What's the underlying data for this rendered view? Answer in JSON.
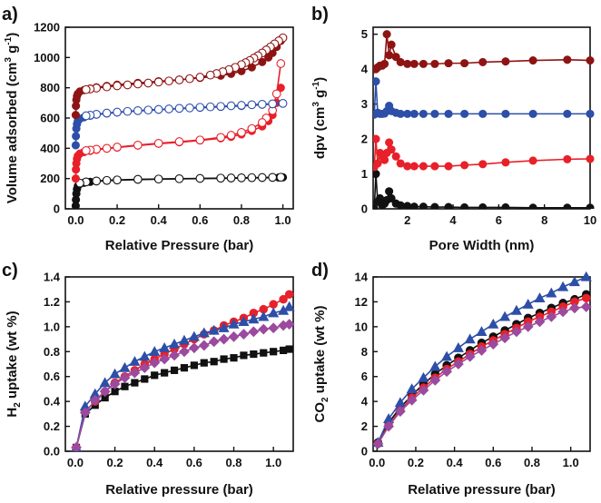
{
  "colors": {
    "black": "#111111",
    "red": "#e8202a",
    "blue": "#2d4fa8",
    "darkred": "#8e1414",
    "magenta": "#9b4a9e"
  },
  "chart_data": [
    {
      "panel": "a)",
      "type": "scatter",
      "xlabel": "Relative Pressure (bar)",
      "ylabel_main": "Volume adsorbed (cm",
      "ylabel_sup1": "3",
      "ylabel_mid": " g",
      "ylabel_sup2": "-1",
      "ylabel_end": ")",
      "xlim": [
        -0.05,
        1.05
      ],
      "ylim": [
        0,
        1200
      ],
      "xticks": [
        "0.0",
        "0.2",
        "0.4",
        "0.6",
        "0.8",
        "1.0"
      ],
      "yticks": [
        "0",
        "200",
        "400",
        "600",
        "800",
        "1000",
        "1200"
      ],
      "xtick_values": [
        0,
        0.2,
        0.4,
        0.6,
        0.8,
        1.0
      ],
      "ytick_values": [
        0,
        200,
        400,
        600,
        800,
        1000,
        1200
      ],
      "series": [
        {
          "color": "black",
          "marker": "circle",
          "adsorption": {
            "x": [
              0.0,
              0.001,
              0.003,
              0.006,
              0.01,
              0.02,
              0.04,
              0.07,
              0.1,
              0.15,
              0.2,
              0.3,
              0.4,
              0.5,
              0.6,
              0.7,
              0.75,
              0.8,
              0.85,
              0.9,
              0.95,
              0.98,
              1.0
            ],
            "y": [
              20,
              60,
              100,
              130,
              150,
              165,
              172,
              178,
              182,
              186,
              189,
              193,
              196,
              198,
              200,
              201,
              202,
              203,
              204,
              205,
              206,
              207,
              208
            ]
          },
          "desorption": {
            "x": [
              0.99,
              0.95,
              0.9,
              0.85,
              0.8,
              0.75,
              0.7,
              0.6,
              0.5,
              0.4,
              0.3,
              0.2,
              0.15,
              0.1,
              0.05,
              0.02
            ],
            "y": [
              209,
              208,
              207,
              206,
              205,
              204,
              203,
              201,
              199,
              197,
              195,
              191,
              188,
              184,
              178,
              170
            ]
          }
        },
        {
          "color": "red",
          "marker": "circle",
          "adsorption": {
            "x": [
              0.0,
              0.001,
              0.003,
              0.006,
              0.01,
              0.02,
              0.04,
              0.07,
              0.1,
              0.15,
              0.2,
              0.3,
              0.4,
              0.5,
              0.6,
              0.7,
              0.75,
              0.8,
              0.85,
              0.9,
              0.93,
              0.95,
              0.97,
              0.99
            ],
            "y": [
              200,
              260,
              300,
              330,
              350,
              365,
              375,
              383,
              390,
              398,
              405,
              418,
              430,
              440,
              452,
              466,
              476,
              492,
              515,
              545,
              580,
              620,
              700,
              800
            ]
          },
          "desorption": {
            "x": [
              0.99,
              0.97,
              0.95,
              0.92,
              0.9,
              0.85,
              0.8,
              0.75,
              0.7,
              0.6,
              0.5,
              0.4,
              0.3,
              0.2,
              0.15,
              0.1,
              0.07,
              0.05
            ],
            "y": [
              960,
              760,
              650,
              600,
              570,
              530,
              505,
              486,
              472,
              455,
              444,
              433,
              421,
              408,
              400,
              394,
              388,
              385
            ]
          }
        },
        {
          "color": "blue",
          "marker": "circle",
          "adsorption": {
            "x": [
              0.0,
              0.001,
              0.003,
              0.006,
              0.01,
              0.02,
              0.04,
              0.07,
              0.1,
              0.15,
              0.2,
              0.3,
              0.4,
              0.5,
              0.6,
              0.7,
              0.8,
              0.9,
              0.95,
              1.0
            ],
            "y": [
              420,
              480,
              530,
              560,
              580,
              595,
              605,
              615,
              622,
              630,
              637,
              647,
              655,
              662,
              668,
              674,
              680,
              688,
              692,
              695
            ]
          },
          "desorption": {
            "x": [
              1.0,
              0.95,
              0.9,
              0.85,
              0.8,
              0.75,
              0.7,
              0.65,
              0.6,
              0.55,
              0.5,
              0.45,
              0.4,
              0.35,
              0.3,
              0.25,
              0.2,
              0.15,
              0.1,
              0.07,
              0.05
            ],
            "y": [
              697,
              694,
              691,
              688,
              684,
              681,
              677,
              674,
              671,
              667,
              664,
              660,
              657,
              653,
              649,
              644,
              639,
              633,
              625,
              619,
              615
            ]
          }
        },
        {
          "color": "darkred",
          "marker": "circle",
          "adsorption": {
            "x": [
              0.0,
              0.001,
              0.003,
              0.006,
              0.01,
              0.02,
              0.04,
              0.07,
              0.1,
              0.15,
              0.2,
              0.3,
              0.4,
              0.5,
              0.6,
              0.7,
              0.75,
              0.8,
              0.85,
              0.9,
              0.93,
              0.95,
              0.97,
              0.99
            ],
            "y": [
              620,
              680,
              720,
              745,
              760,
              775,
              785,
              795,
              803,
              812,
              820,
              832,
              843,
              853,
              865,
              880,
              892,
              910,
              935,
              970,
              1000,
              1030,
              1070,
              1110
            ]
          },
          "desorption": {
            "x": [
              1.0,
              0.98,
              0.96,
              0.94,
              0.92,
              0.9,
              0.88,
              0.86,
              0.84,
              0.82,
              0.8,
              0.77,
              0.74,
              0.71,
              0.68,
              0.65,
              0.6,
              0.55,
              0.5,
              0.45,
              0.4,
              0.35,
              0.3,
              0.25,
              0.2,
              0.15,
              0.1,
              0.07,
              0.05
            ],
            "y": [
              1130,
              1110,
              1090,
              1070,
              1050,
              1030,
              1012,
              996,
              980,
              966,
              953,
              935,
              920,
              906,
              894,
              884,
              870,
              860,
              852,
              845,
              838,
              831,
              825,
              819,
              813,
              806,
              798,
              792,
              788
            ]
          }
        }
      ]
    },
    {
      "panel": "b)",
      "type": "line",
      "xlabel": "Pore Width (nm)",
      "ylabel_main": "dpv (cm",
      "ylabel_sup1": "3",
      "ylabel_mid": " g",
      "ylabel_sup2": "-1",
      "ylabel_end": ")",
      "xlim": [
        0.5,
        10
      ],
      "ylim": [
        0,
        5.2
      ],
      "xticks": [
        "2",
        "4",
        "6",
        "8",
        "10"
      ],
      "yticks": [
        "0",
        "1",
        "2",
        "3",
        "4",
        "5"
      ],
      "xtick_values": [
        2,
        4,
        6,
        8,
        10
      ],
      "ytick_values": [
        0,
        1,
        2,
        3,
        4,
        5
      ],
      "series": [
        {
          "color": "black",
          "marker": "circle",
          "x": [
            0.55,
            0.62,
            0.7,
            0.8,
            0.9,
            1.0,
            1.1,
            1.2,
            1.3,
            1.5,
            1.7,
            2.0,
            2.3,
            2.7,
            3.2,
            3.8,
            4.5,
            5.3,
            6.3,
            7.5,
            9.0,
            10.0
          ],
          "y": [
            0.0,
            1.0,
            0.2,
            0.3,
            0.1,
            0.15,
            0.25,
            0.5,
            0.3,
            0.15,
            0.1,
            0.08,
            0.06,
            0.06,
            0.05,
            0.05,
            0.04,
            0.04,
            0.04,
            0.03,
            0.03,
            0.03
          ]
        },
        {
          "color": "red",
          "marker": "circle",
          "x": [
            0.55,
            0.62,
            0.7,
            0.8,
            0.9,
            1.0,
            1.1,
            1.2,
            1.3,
            1.5,
            1.7,
            2.0,
            2.3,
            2.7,
            3.2,
            3.8,
            4.5,
            5.3,
            6.3,
            7.5,
            9.0,
            10.0
          ],
          "y": [
            1.2,
            2.0,
            1.3,
            1.6,
            1.5,
            1.4,
            1.6,
            1.9,
            1.7,
            1.5,
            1.3,
            1.22,
            1.22,
            1.22,
            1.22,
            1.22,
            1.25,
            1.28,
            1.33,
            1.38,
            1.42,
            1.43
          ]
        },
        {
          "color": "blue",
          "marker": "circle",
          "x": [
            0.55,
            0.62,
            0.7,
            0.8,
            0.9,
            1.0,
            1.1,
            1.2,
            1.3,
            1.5,
            1.7,
            2.0,
            2.3,
            2.7,
            3.2,
            3.8,
            4.5,
            5.3,
            6.3,
            7.5,
            9.0,
            10.0
          ],
          "y": [
            2.7,
            3.65,
            2.75,
            2.72,
            2.72,
            2.73,
            2.8,
            2.95,
            2.8,
            2.75,
            2.72,
            2.72,
            2.72,
            2.72,
            2.72,
            2.72,
            2.72,
            2.72,
            2.72,
            2.72,
            2.72,
            2.72
          ]
        },
        {
          "color": "darkred",
          "marker": "circle",
          "x": [
            0.55,
            0.62,
            0.7,
            0.8,
            0.9,
            1.0,
            1.1,
            1.2,
            1.3,
            1.5,
            1.7,
            2.0,
            2.3,
            2.7,
            3.2,
            3.8,
            4.5,
            5.3,
            6.3,
            7.5,
            9.0,
            10.0
          ],
          "y": [
            4.0,
            4.0,
            4.05,
            4.1,
            4.1,
            4.15,
            5.0,
            4.4,
            4.7,
            4.35,
            4.2,
            4.15,
            4.15,
            4.15,
            4.15,
            4.17,
            4.17,
            4.2,
            4.22,
            4.25,
            4.27,
            4.25
          ]
        }
      ]
    },
    {
      "panel": "c)",
      "type": "line",
      "xlabel": "Relative pressure (bar)",
      "ylabel_main": "H",
      "ylabel_sub": "2",
      "ylabel_end": " uptake (wt %)",
      "xlim": [
        -0.05,
        1.1
      ],
      "ylim": [
        0,
        1.4
      ],
      "xticks": [
        "0.0",
        "0.2",
        "0.4",
        "0.6",
        "0.8",
        "1.0"
      ],
      "yticks": [
        "0.0",
        "0.2",
        "0.4",
        "0.6",
        "0.8",
        "1.0",
        "1.2",
        "1.4"
      ],
      "xtick_values": [
        0,
        0.2,
        0.4,
        0.6,
        0.8,
        1.0
      ],
      "ytick_values": [
        0,
        0.2,
        0.4,
        0.6,
        0.8,
        1.0,
        1.2,
        1.4
      ],
      "x": [
        0.005,
        0.05,
        0.1,
        0.15,
        0.2,
        0.25,
        0.3,
        0.35,
        0.4,
        0.45,
        0.5,
        0.55,
        0.6,
        0.65,
        0.7,
        0.75,
        0.8,
        0.85,
        0.9,
        0.95,
        1.0,
        1.05,
        1.08
      ],
      "series": [
        {
          "color": "black",
          "marker": "square",
          "y": [
            0.03,
            0.3,
            0.37,
            0.43,
            0.48,
            0.52,
            0.55,
            0.58,
            0.61,
            0.63,
            0.65,
            0.67,
            0.69,
            0.71,
            0.72,
            0.74,
            0.75,
            0.77,
            0.78,
            0.79,
            0.8,
            0.81,
            0.82
          ]
        },
        {
          "color": "red",
          "marker": "circle",
          "y": [
            0.03,
            0.32,
            0.4,
            0.48,
            0.55,
            0.6,
            0.65,
            0.7,
            0.74,
            0.78,
            0.82,
            0.86,
            0.9,
            0.94,
            0.97,
            1.01,
            1.04,
            1.07,
            1.11,
            1.14,
            1.18,
            1.22,
            1.26
          ]
        },
        {
          "color": "blue",
          "marker": "triangle",
          "y": [
            0.03,
            0.36,
            0.46,
            0.55,
            0.62,
            0.67,
            0.72,
            0.76,
            0.8,
            0.83,
            0.86,
            0.89,
            0.92,
            0.95,
            0.97,
            0.99,
            1.02,
            1.04,
            1.06,
            1.08,
            1.11,
            1.13,
            1.16
          ]
        },
        {
          "color": "magenta",
          "marker": "diamond",
          "y": [
            0.03,
            0.31,
            0.41,
            0.48,
            0.54,
            0.59,
            0.63,
            0.67,
            0.71,
            0.74,
            0.77,
            0.8,
            0.83,
            0.85,
            0.88,
            0.9,
            0.92,
            0.94,
            0.96,
            0.98,
            0.99,
            1.01,
            1.02
          ]
        }
      ]
    },
    {
      "panel": "d)",
      "type": "line",
      "xlabel": "Relative pressure (bar)",
      "ylabel_main": "CO",
      "ylabel_sub": "2",
      "ylabel_end": " uptake (wt %)",
      "xlim": [
        -0.02,
        1.1
      ],
      "ylim": [
        0,
        14
      ],
      "xticks": [
        "0.0",
        "0.2",
        "0.4",
        "0.6",
        "0.8",
        "1.0"
      ],
      "yticks": [
        "0",
        "2",
        "4",
        "6",
        "8",
        "10",
        "12",
        "14"
      ],
      "xtick_values": [
        0,
        0.2,
        0.4,
        0.6,
        0.8,
        1.0
      ],
      "ytick_values": [
        0,
        2,
        4,
        6,
        8,
        10,
        12,
        14
      ],
      "x": [
        0.005,
        0.06,
        0.12,
        0.18,
        0.24,
        0.3,
        0.36,
        0.42,
        0.48,
        0.54,
        0.6,
        0.66,
        0.72,
        0.78,
        0.84,
        0.9,
        0.96,
        1.02,
        1.08
      ],
      "series": [
        {
          "color": "black",
          "marker": "circle",
          "y": [
            0.7,
            2.3,
            3.5,
            4.5,
            5.4,
            6.2,
            6.9,
            7.5,
            8.1,
            8.7,
            9.2,
            9.7,
            10.2,
            10.7,
            11.1,
            11.5,
            11.9,
            12.2,
            12.6
          ]
        },
        {
          "color": "red",
          "marker": "circle",
          "y": [
            0.6,
            2.1,
            3.3,
            4.3,
            5.1,
            5.9,
            6.6,
            7.2,
            7.8,
            8.4,
            8.9,
            9.4,
            9.9,
            10.4,
            10.8,
            11.2,
            11.6,
            12.0,
            12.3
          ]
        },
        {
          "color": "blue",
          "marker": "triangle",
          "y": [
            0.7,
            2.6,
            3.9,
            5.0,
            5.9,
            6.8,
            7.6,
            8.3,
            9.0,
            9.6,
            10.2,
            10.8,
            11.3,
            11.8,
            12.3,
            12.7,
            13.2,
            13.6,
            14.0
          ]
        },
        {
          "color": "magenta",
          "marker": "diamond",
          "y": [
            0.6,
            2.0,
            3.2,
            4.1,
            4.9,
            5.7,
            6.4,
            7.0,
            7.6,
            8.1,
            8.6,
            9.1,
            9.6,
            10.0,
            10.4,
            10.8,
            11.2,
            11.5,
            11.6
          ]
        }
      ]
    }
  ]
}
